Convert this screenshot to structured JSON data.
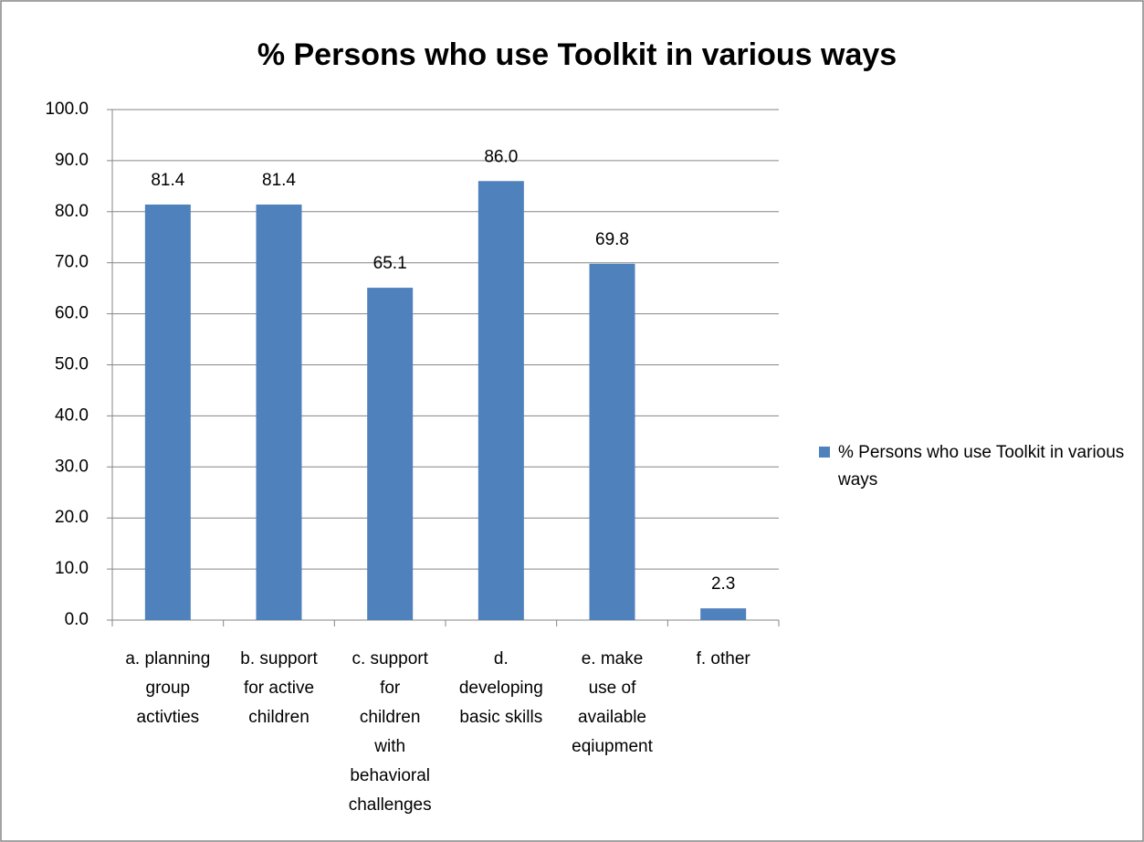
{
  "chart_data": {
    "type": "bar",
    "title": "% Persons who use Toolkit in various ways",
    "categories": [
      "a. planning\ngroup\nactivties",
      "b. support\nfor active\nchildren",
      "c. support\nfor\nchildren\nwith\nbehavioral\nchallenges",
      "d.\ndeveloping\nbasic skills",
      "e. make\nuse of\navailable\neqiupment",
      "f. other"
    ],
    "series": [
      {
        "name": "% Persons who use Toolkit in various ways",
        "color": "#4f81bd",
        "values": [
          81.4,
          81.4,
          65.1,
          86.0,
          69.8,
          2.3
        ],
        "value_labels": [
          "81.4",
          "81.4",
          "65.1",
          "86.0",
          "69.8",
          "2.3"
        ]
      }
    ],
    "ylim": [
      0,
      100
    ],
    "yticks": [
      {
        "value": 0,
        "label": "0.0"
      },
      {
        "value": 10,
        "label": "10.0"
      },
      {
        "value": 20,
        "label": "20.0"
      },
      {
        "value": 30,
        "label": "30.0"
      },
      {
        "value": 40,
        "label": "40.0"
      },
      {
        "value": 50,
        "label": "50.0"
      },
      {
        "value": 60,
        "label": "60.0"
      },
      {
        "value": 70,
        "label": "70.0"
      },
      {
        "value": 80,
        "label": "80.0"
      },
      {
        "value": 90,
        "label": "90.0"
      },
      {
        "value": 100,
        "label": "100.0"
      }
    ],
    "grid": true,
    "legend": "right"
  }
}
